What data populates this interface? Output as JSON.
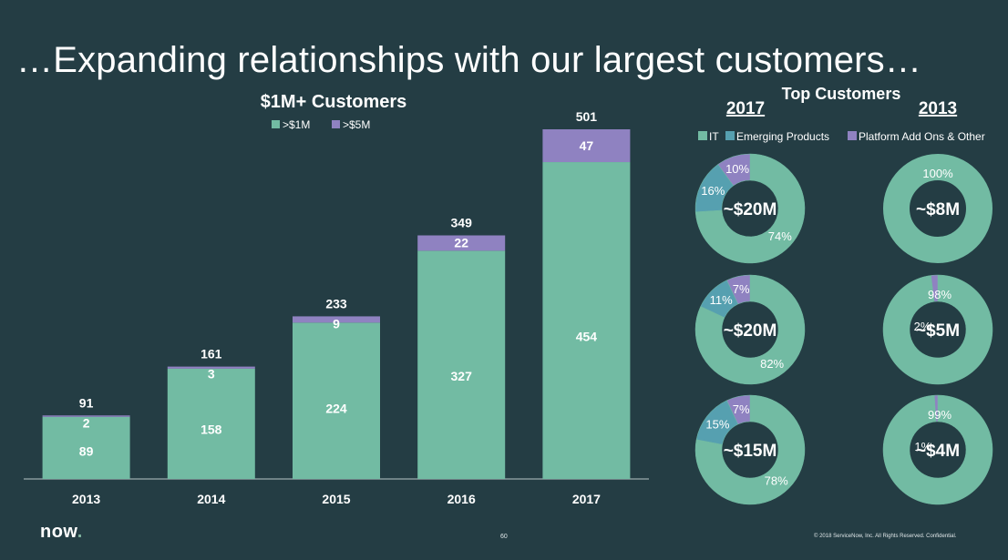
{
  "title": "…Expanding relationships with our largest customers…",
  "colors": {
    "background": "#243d44",
    "over1m": "#72bba3",
    "over5m": "#8f82c1",
    "it": "#72bba3",
    "emerging": "#56a0b0",
    "platform": "#8f82c1",
    "donut_hole": "#243d44"
  },
  "chart_data": [
    {
      "type": "bar",
      "stacked": true,
      "title": "$1M+ Customers",
      "categories": [
        "2013",
        "2014",
        "2015",
        "2016",
        "2017"
      ],
      "series": [
        {
          "name": ">$1M",
          "values": [
            89,
            158,
            224,
            327,
            454
          ]
        },
        {
          "name": ">$5M",
          "values": [
            2,
            3,
            9,
            22,
            47
          ]
        }
      ],
      "totals": [
        91,
        161,
        233,
        349,
        501
      ],
      "legend": "top",
      "grid": false,
      "ylim": [
        0,
        501
      ]
    },
    {
      "type": "pie",
      "donut": true,
      "title": "Top Customers",
      "legend": [
        "IT",
        "Emerging Products",
        "Platform Add Ons & Other"
      ],
      "columns": [
        "2017",
        "2013"
      ],
      "charts": [
        {
          "column": "2017",
          "center": "~$20M",
          "slices": [
            74,
            16,
            10
          ],
          "labels": [
            "74%",
            "16%",
            "10%"
          ]
        },
        {
          "column": "2013",
          "center": "~$8M",
          "slices": [
            100,
            0,
            0
          ],
          "labels": [
            "100%",
            "",
            ""
          ]
        },
        {
          "column": "2017",
          "center": "~$20M",
          "slices": [
            82,
            11,
            7
          ],
          "labels": [
            "82%",
            "11%",
            "7%"
          ]
        },
        {
          "column": "2013",
          "center": "~$5M",
          "slices": [
            98,
            0,
            2
          ],
          "labels": [
            "98%",
            "",
            "2%"
          ]
        },
        {
          "column": "2017",
          "center": "~$15M",
          "slices": [
            78,
            15,
            7
          ],
          "labels": [
            "78%",
            "15%",
            "7%"
          ]
        },
        {
          "column": "2013",
          "center": "~$4M",
          "slices": [
            99,
            0,
            1
          ],
          "labels": [
            "99%",
            "",
            "1%"
          ]
        }
      ]
    }
  ],
  "footer": {
    "logo": "now",
    "logo_dot": ".",
    "page": "60",
    "copyright": "© 2018 ServiceNow, Inc. All Rights Reserved. Confidential."
  }
}
